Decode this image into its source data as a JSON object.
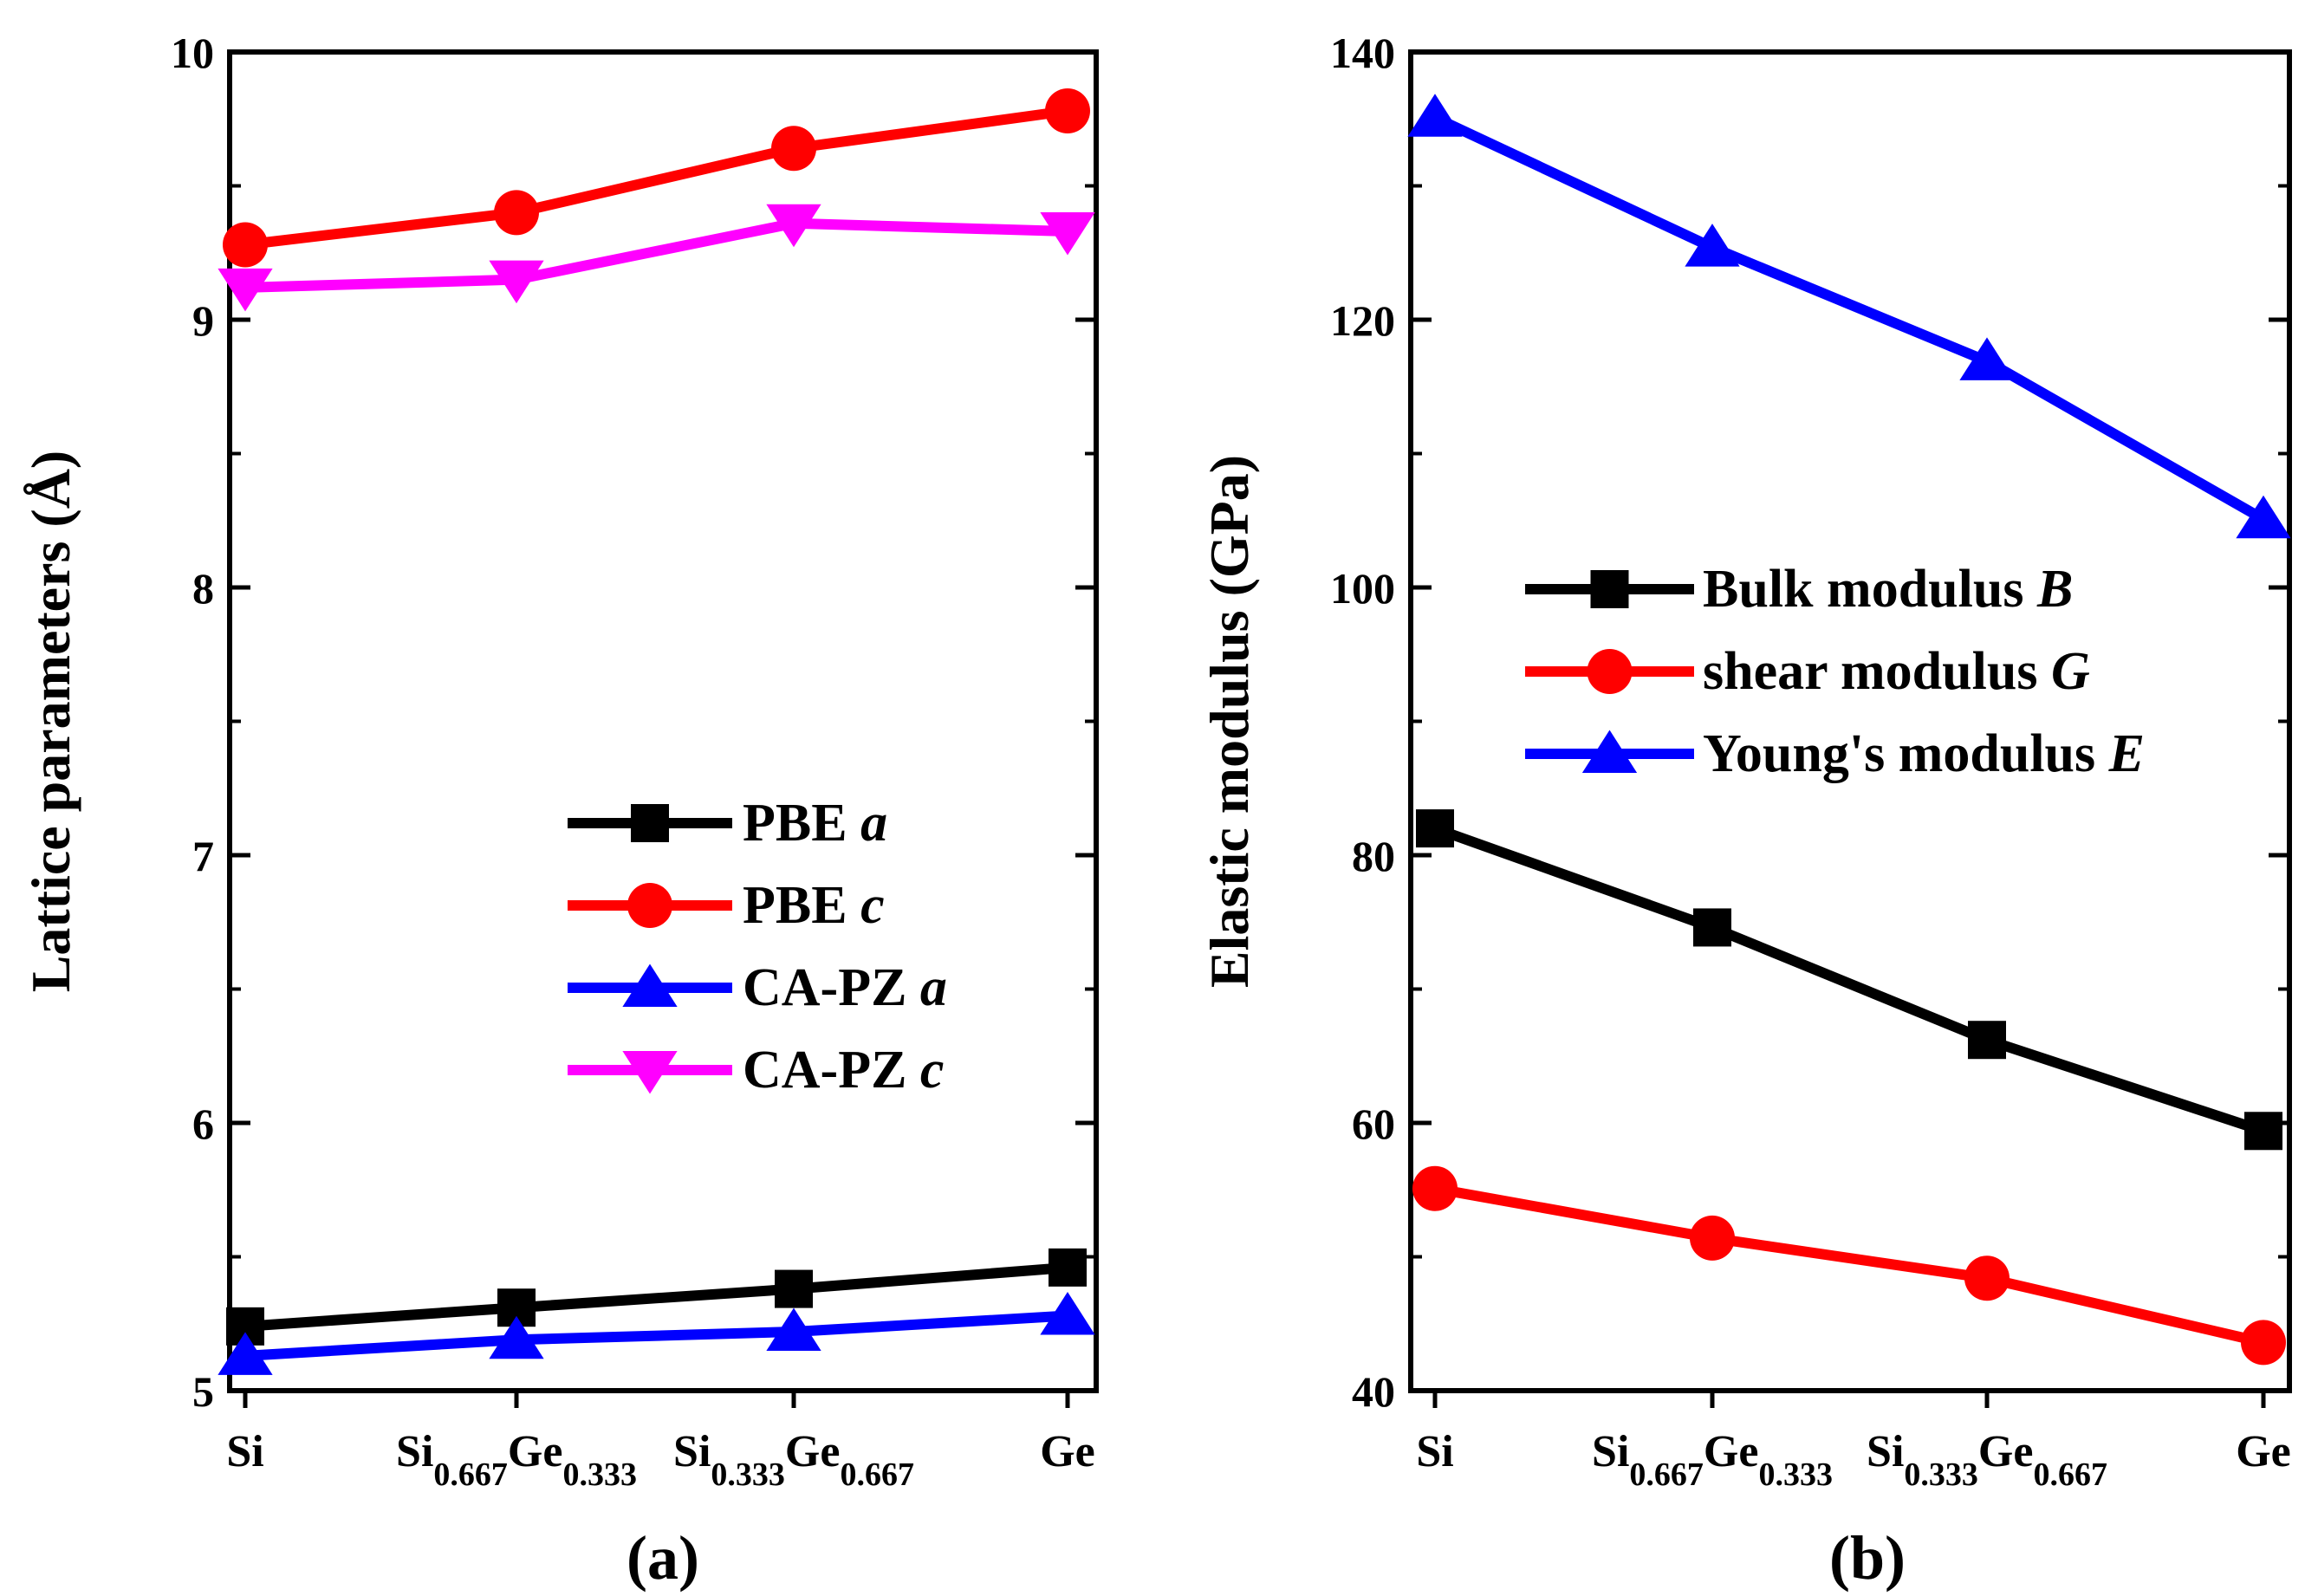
{
  "chart_data": [
    {
      "type": "line",
      "panel_label": "(a)",
      "ylabel": "Lattice parameters (Å)",
      "ylabel_prefix": "Lattice parameters (",
      "ylabel_unit": "Å",
      "ylabel_suffix": ")",
      "ylim": [
        5,
        10
      ],
      "yticks": [
        5,
        6,
        7,
        8,
        9,
        10
      ],
      "yticks_minor": [
        5.5,
        6.5,
        7.5,
        8.5,
        9.5
      ],
      "categories": [
        {
          "base": "Si",
          "parts": []
        },
        {
          "base": "",
          "parts": [
            [
              "Si",
              "0.667"
            ],
            [
              "Ge",
              "0.333"
            ]
          ]
        },
        {
          "base": "",
          "parts": [
            [
              "Si",
              "0.333"
            ],
            [
              "Ge",
              "0.667"
            ]
          ]
        },
        {
          "base": "Ge",
          "parts": []
        }
      ],
      "legend_position": "center-right",
      "series": [
        {
          "name": "PBE",
          "var": "a",
          "color": "#000000",
          "marker": "square",
          "values": [
            5.24,
            5.31,
            5.38,
            5.46
          ]
        },
        {
          "name": "PBE",
          "var": "c",
          "color": "#ff0000",
          "marker": "circle",
          "values": [
            9.28,
            9.4,
            9.64,
            9.78
          ]
        },
        {
          "name": "CA-PZ",
          "var": "a",
          "color": "#0000ff",
          "marker": "triangle-up",
          "values": [
            5.13,
            5.19,
            5.22,
            5.28
          ]
        },
        {
          "name": "CA-PZ",
          "var": "c",
          "color": "#ff00ff",
          "marker": "triangle-down",
          "values": [
            9.12,
            9.15,
            9.36,
            9.33
          ]
        }
      ]
    },
    {
      "type": "line",
      "panel_label": "(b)",
      "ylabel": "Elastic modulus (GPa)",
      "ylim": [
        40,
        140
      ],
      "yticks": [
        40,
        60,
        80,
        100,
        120,
        140
      ],
      "yticks_minor": [
        50,
        70,
        90,
        110,
        130
      ],
      "categories": [
        {
          "base": "Si",
          "parts": []
        },
        {
          "base": "",
          "parts": [
            [
              "Si",
              "0.667"
            ],
            [
              "Ge",
              "0.333"
            ]
          ]
        },
        {
          "base": "",
          "parts": [
            [
              "Si",
              "0.333"
            ],
            [
              "Ge",
              "0.667"
            ]
          ]
        },
        {
          "base": "Ge",
          "parts": []
        }
      ],
      "legend_position": "center-right",
      "series": [
        {
          "name": "Bulk modulus",
          "var": "B",
          "color": "#000000",
          "marker": "square",
          "values": [
            82,
            74.6,
            66.2,
            59.4
          ]
        },
        {
          "name": "shear modulus",
          "var": "G",
          "color": "#ff0000",
          "marker": "circle",
          "values": [
            55.1,
            51.4,
            48.4,
            43.6
          ]
        },
        {
          "name": "Young's modulus",
          "var": "E",
          "color": "#0000ff",
          "marker": "triangle-up",
          "values": [
            135.1,
            125.4,
            116.9,
            105.1
          ]
        }
      ]
    }
  ]
}
